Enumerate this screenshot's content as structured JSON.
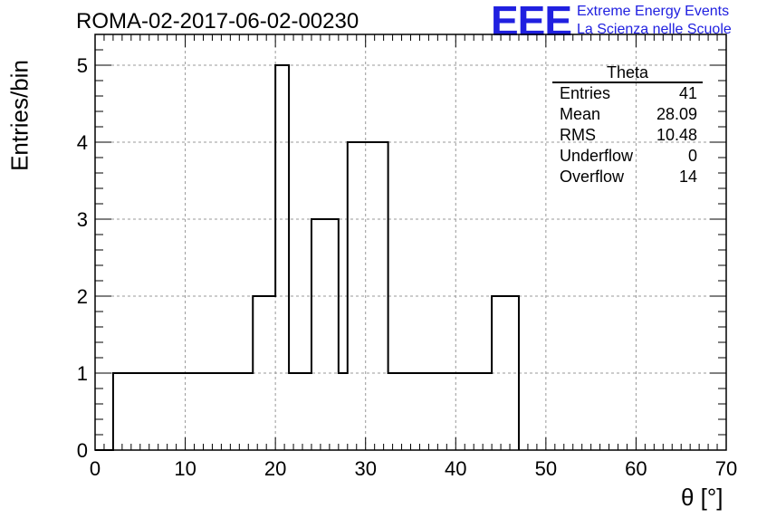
{
  "title": "ROMA-02-2017-06-02-00230",
  "logo": {
    "mark": "EEE",
    "line1": "Extreme Energy Events",
    "line2": "La Scienza nelle Scuole",
    "color": "#2020e0"
  },
  "stats": {
    "title": "Theta",
    "rows": [
      {
        "label": "Entries",
        "value": "41"
      },
      {
        "label": "Mean",
        "value": "28.09"
      },
      {
        "label": "RMS",
        "value": "10.48"
      },
      {
        "label": "Underflow",
        "value": "0"
      },
      {
        "label": "Overflow",
        "value": "14"
      }
    ]
  },
  "chart_data": {
    "type": "bar",
    "style": "histogram-step",
    "xlabel": "θ [°]",
    "ylabel": "Entries/bin",
    "xlim": [
      0,
      70
    ],
    "ylim": [
      0,
      5.4
    ],
    "xticks": [
      0,
      10,
      20,
      30,
      40,
      50,
      60,
      70
    ],
    "yticks": [
      0,
      1,
      2,
      3,
      4,
      5
    ],
    "grid": true,
    "bins": [
      {
        "x0": 2.0,
        "x1": 3.0,
        "value": 1
      },
      {
        "x0": 15.0,
        "x1": 17.5,
        "value": 1
      },
      {
        "x0": 17.5,
        "x1": 19.0,
        "value": 2
      },
      {
        "x0": 20.0,
        "x1": 21.5,
        "value": 5
      },
      {
        "x0": 21.5,
        "x1": 24.0,
        "value": 1
      },
      {
        "x0": 24.0,
        "x1": 25.5,
        "value": 3
      },
      {
        "x0": 27.0,
        "x1": 28.0,
        "value": 1
      },
      {
        "x0": 28.0,
        "x1": 29.0,
        "value": 4
      },
      {
        "x0": 32.5,
        "x1": 33.5,
        "value": 1
      },
      {
        "x0": 35.0,
        "x1": 36.0,
        "value": 1
      },
      {
        "x0": 39.0,
        "x1": 40.0,
        "value": 1
      },
      {
        "x0": 44.0,
        "x1": 45.5,
        "value": 2
      },
      {
        "x0": 46.0,
        "x1": 47.0,
        "value": 2
      }
    ]
  }
}
